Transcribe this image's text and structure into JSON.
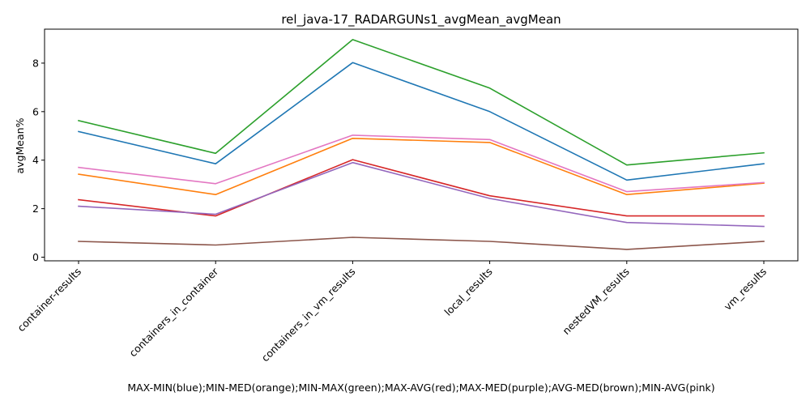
{
  "chart_data": {
    "type": "line",
    "title": "rel_java-17_RADARGUNs1_avgMean_avgMean",
    "xlabel": "MAX-MIN(blue);MIN-MED(orange);MIN-MAX(green);MAX-AVG(red);MAX-MED(purple);AVG-MED(brown);MIN-AVG(pink)",
    "ylabel": "avgMean%",
    "categories": [
      "container-results",
      "containers_in_container",
      "containers_in_vm_results",
      "local_results",
      "nestedVM_results",
      "vm_results"
    ],
    "yticks": [
      0,
      2,
      4,
      6,
      8
    ],
    "ylim": [
      -0.15,
      9.4
    ],
    "grid": false,
    "series": [
      {
        "color": "#1f77b4",
        "values": [
          5.18,
          3.85,
          8.02,
          6.0,
          3.18,
          3.85
        ]
      },
      {
        "color": "#ff7f0e",
        "values": [
          3.42,
          2.58,
          4.9,
          4.73,
          2.58,
          3.05
        ]
      },
      {
        "color": "#2ca02c",
        "values": [
          5.63,
          4.28,
          8.97,
          6.97,
          3.8,
          4.3
        ]
      },
      {
        "color": "#d62728",
        "values": [
          2.37,
          1.7,
          4.02,
          2.53,
          1.7,
          1.7
        ]
      },
      {
        "color": "#9467bd",
        "values": [
          2.1,
          1.77,
          3.9,
          2.42,
          1.43,
          1.27
        ]
      },
      {
        "color": "#8c564b",
        "values": [
          0.65,
          0.5,
          0.82,
          0.65,
          0.32,
          0.65
        ]
      },
      {
        "color": "#e377c2",
        "values": [
          3.7,
          3.03,
          5.03,
          4.85,
          2.7,
          3.08
        ]
      }
    ]
  }
}
